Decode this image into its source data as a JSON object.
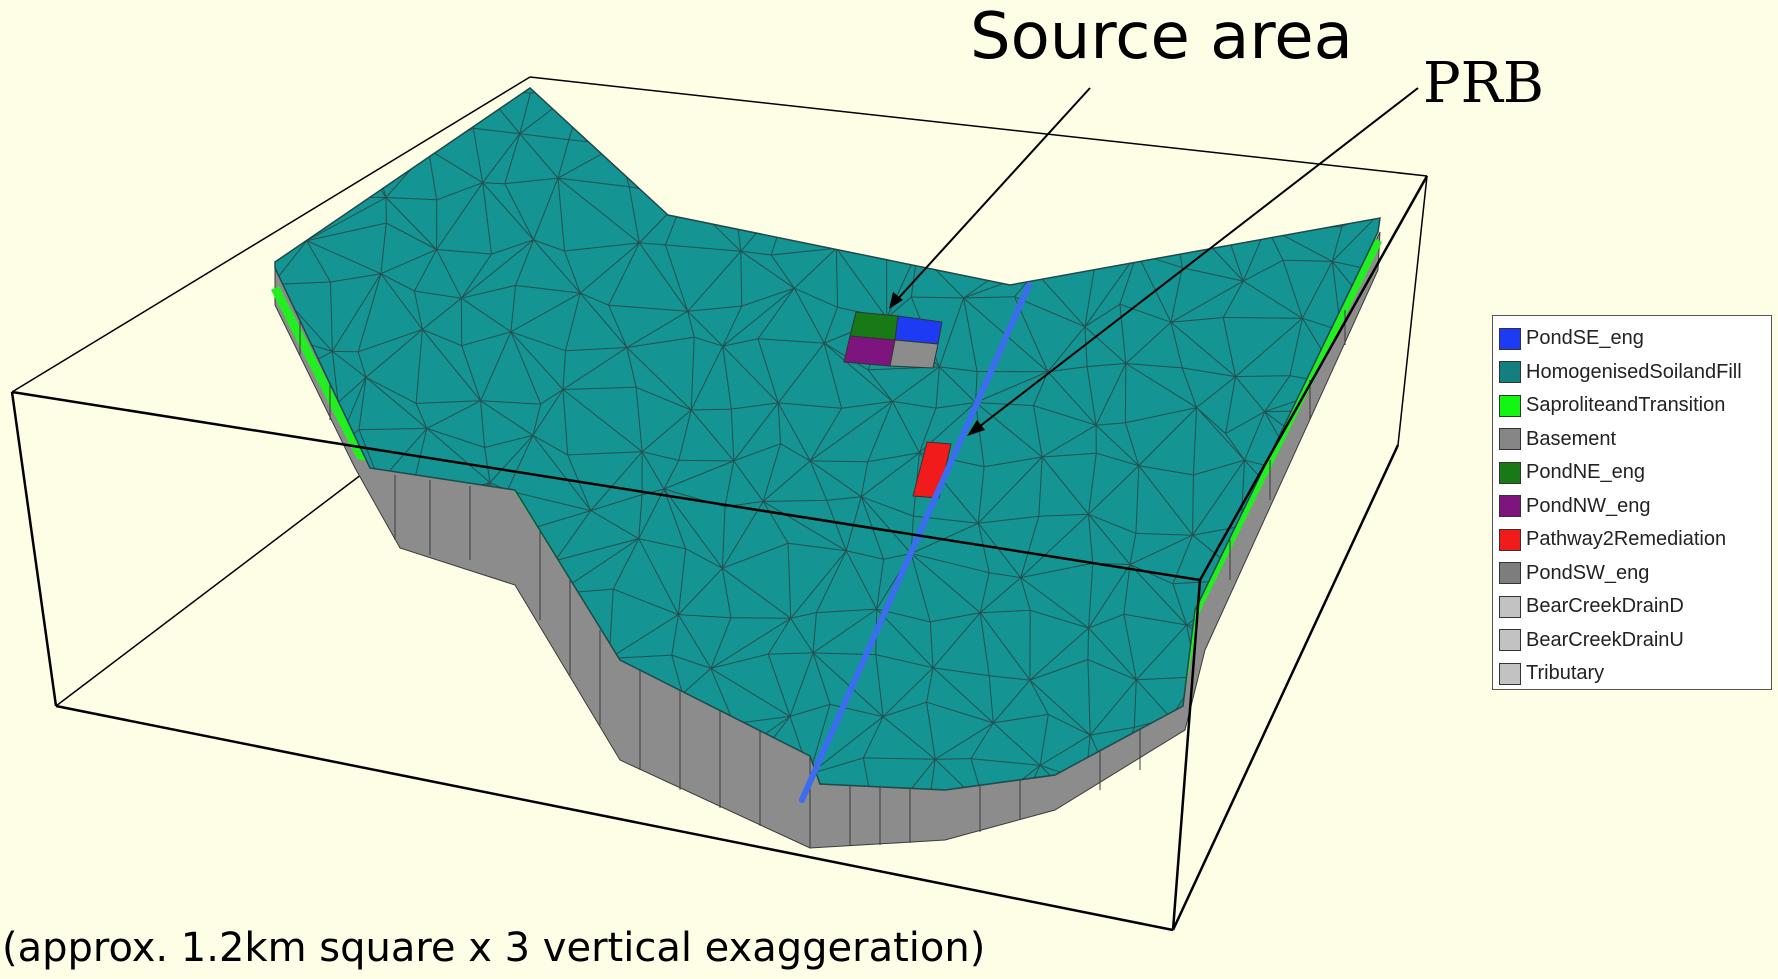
{
  "annotations": {
    "source_area": "Source area",
    "prb": "PRB"
  },
  "caption": "(approx. 1.2km square x 3 vertical exaggeration)",
  "colors": {
    "background": "#fefee6",
    "surface": "#149492",
    "saprolite": "#22ee22",
    "basement": "#8c8c8c",
    "prb_line": "#3c6cf0",
    "mesh": "#2c3a3a"
  },
  "legend": {
    "items": [
      {
        "label": "PondSE_eng",
        "color": "#1d3bf2"
      },
      {
        "label": "HomogenisedSoilandFill",
        "color": "#157f80"
      },
      {
        "label": "SaproliteandTransition",
        "color": "#11f711"
      },
      {
        "label": "Basement",
        "color": "#868686"
      },
      {
        "label": "PondNE_eng",
        "color": "#177a17"
      },
      {
        "label": "PondNW_eng",
        "color": "#7e157e"
      },
      {
        "label": "Pathway2Remediation",
        "color": "#f21b1b"
      },
      {
        "label": "PondSW_eng",
        "color": "#7d7d7d"
      },
      {
        "label": "BearCreekDrainD",
        "color": "#c2c2c2"
      },
      {
        "label": "BearCreekDrainU",
        "color": "#c2c2c2"
      },
      {
        "label": "Tributary",
        "color": "#c2c2c2"
      }
    ]
  }
}
